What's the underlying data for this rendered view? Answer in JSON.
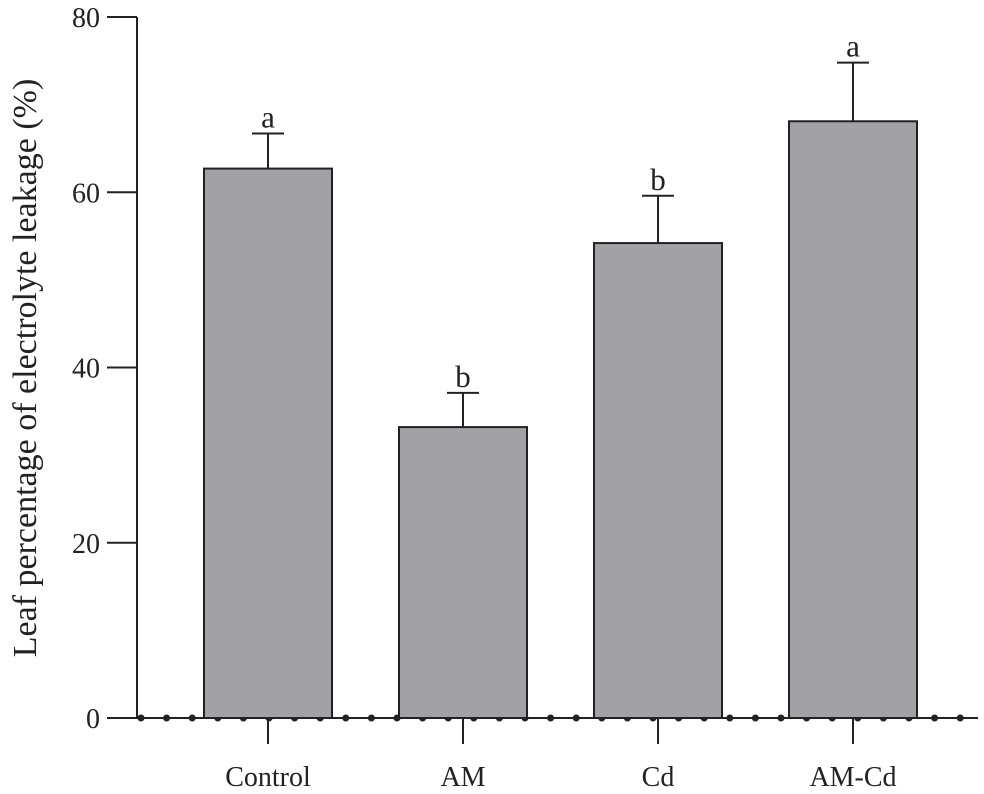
{
  "chart_data": {
    "type": "bar",
    "title": "",
    "xlabel": "",
    "ylabel": "Leaf percentage of electrolyte leakage (%)",
    "ylim": [
      0,
      80
    ],
    "yticks": [
      0,
      20,
      40,
      60,
      80
    ],
    "categories": [
      "Control",
      "AM",
      "Cd",
      "AM-Cd"
    ],
    "values": [
      62.7,
      33.2,
      54.2,
      68.1
    ],
    "errors": [
      4.0,
      3.9,
      5.4,
      6.7
    ],
    "significance": [
      "a",
      "b",
      "b",
      "a"
    ],
    "grid": false,
    "legend": "none",
    "bar_color": "#a1a1a6",
    "bar_stroke": "#222222"
  }
}
